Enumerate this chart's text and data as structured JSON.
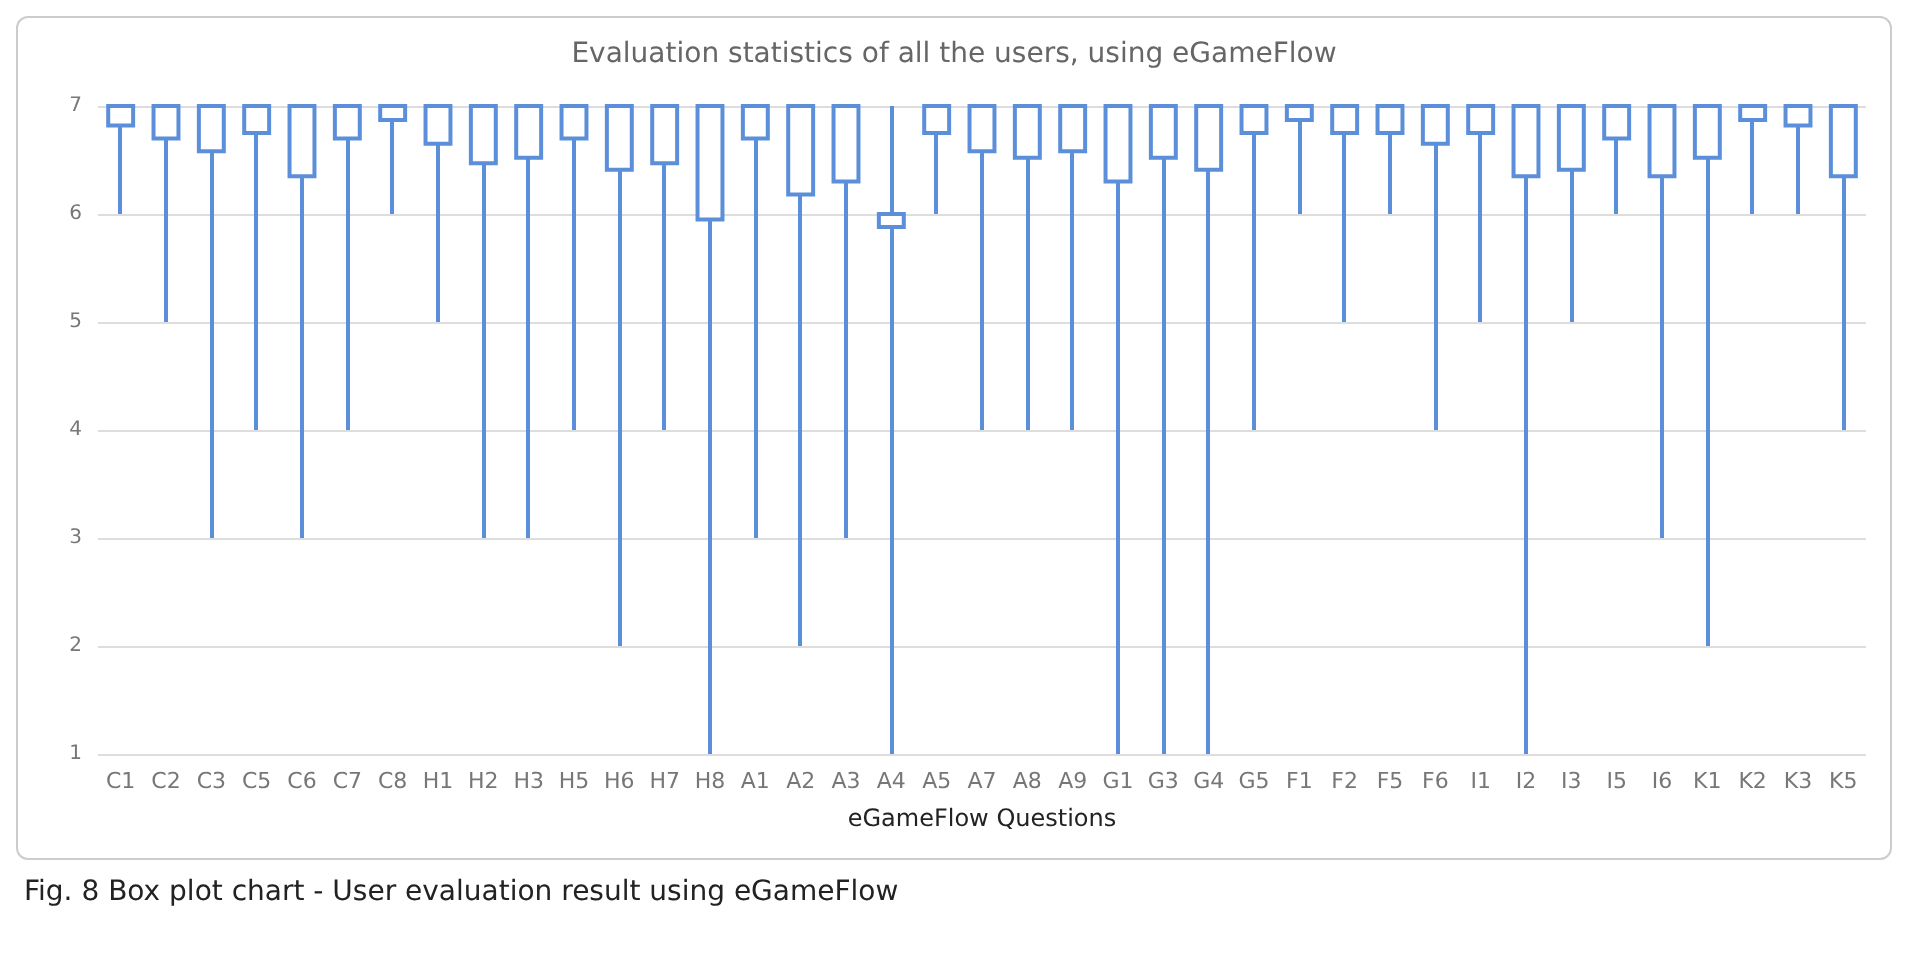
{
  "chart_data": {
    "type": "box",
    "title": "Evaluation statistics of all the users, using eGameFlow",
    "xlabel": "eGameFlow Questions",
    "categories": [
      "C1",
      "C2",
      "C3",
      "C5",
      "C6",
      "C7",
      "C8",
      "H1",
      "H2",
      "H3",
      "H5",
      "H6",
      "H7",
      "H8",
      "A1",
      "A2",
      "A3",
      "A4",
      "A5",
      "A7",
      "A8",
      "A9",
      "G1",
      "G3",
      "G4",
      "G5",
      "F1",
      "F2",
      "F5",
      "F6",
      "I1",
      "I2",
      "I3",
      "I5",
      "I6",
      "K1",
      "K2",
      "K3",
      "K5"
    ],
    "color": "#5b8fd9",
    "boxes": [
      {
        "low": 6,
        "q1": 6.82,
        "median": 7,
        "q3": 7,
        "high": 7
      },
      {
        "low": 5,
        "q1": 6.7,
        "median": 7,
        "q3": 7,
        "high": 7
      },
      {
        "low": 3,
        "q1": 6.58,
        "median": 7,
        "q3": 7,
        "high": 7
      },
      {
        "low": 4,
        "q1": 6.75,
        "median": 7,
        "q3": 7,
        "high": 7
      },
      {
        "low": 3,
        "q1": 6.35,
        "median": 7,
        "q3": 7,
        "high": 7
      },
      {
        "low": 4,
        "q1": 6.7,
        "median": 7,
        "q3": 7,
        "high": 7
      },
      {
        "low": 6,
        "q1": 6.87,
        "median": 7,
        "q3": 7,
        "high": 7
      },
      {
        "low": 5,
        "q1": 6.65,
        "median": 7,
        "q3": 7,
        "high": 7
      },
      {
        "low": 3,
        "q1": 6.47,
        "median": 7,
        "q3": 7,
        "high": 7
      },
      {
        "low": 3,
        "q1": 6.52,
        "median": 7,
        "q3": 7,
        "high": 7
      },
      {
        "low": 4,
        "q1": 6.7,
        "median": 7,
        "q3": 7,
        "high": 7
      },
      {
        "low": 2,
        "q1": 6.41,
        "median": 7,
        "q3": 7,
        "high": 7
      },
      {
        "low": 4,
        "q1": 6.47,
        "median": 7,
        "q3": 7,
        "high": 7
      },
      {
        "low": 1,
        "q1": 5.95,
        "median": 7,
        "q3": 7,
        "high": 7
      },
      {
        "low": 3,
        "q1": 6.7,
        "median": 7,
        "q3": 7,
        "high": 7
      },
      {
        "low": 2,
        "q1": 6.18,
        "median": 7,
        "q3": 7,
        "high": 7
      },
      {
        "low": 3,
        "q1": 6.3,
        "median": 7,
        "q3": 7,
        "high": 7
      },
      {
        "low": 1,
        "q1": 5.88,
        "median": 6,
        "q3": 6,
        "high": 7
      },
      {
        "low": 6,
        "q1": 6.75,
        "median": 7,
        "q3": 7,
        "high": 7
      },
      {
        "low": 4,
        "q1": 6.58,
        "median": 7,
        "q3": 7,
        "high": 7
      },
      {
        "low": 4,
        "q1": 6.52,
        "median": 7,
        "q3": 7,
        "high": 7
      },
      {
        "low": 4,
        "q1": 6.58,
        "median": 7,
        "q3": 7,
        "high": 7
      },
      {
        "low": 1,
        "q1": 6.3,
        "median": 7,
        "q3": 7,
        "high": 7
      },
      {
        "low": 1,
        "q1": 6.52,
        "median": 7,
        "q3": 7,
        "high": 7
      },
      {
        "low": 1,
        "q1": 6.41,
        "median": 7,
        "q3": 7,
        "high": 7
      },
      {
        "low": 4,
        "q1": 6.75,
        "median": 7,
        "q3": 7,
        "high": 7
      },
      {
        "low": 6,
        "q1": 6.87,
        "median": 7,
        "q3": 7,
        "high": 7
      },
      {
        "low": 5,
        "q1": 6.75,
        "median": 7,
        "q3": 7,
        "high": 7
      },
      {
        "low": 6,
        "q1": 6.75,
        "median": 7,
        "q3": 7,
        "high": 7
      },
      {
        "low": 4,
        "q1": 6.65,
        "median": 7,
        "q3": 7,
        "high": 7
      },
      {
        "low": 5,
        "q1": 6.75,
        "median": 7,
        "q3": 7,
        "high": 7
      },
      {
        "low": 1,
        "q1": 6.35,
        "median": 7,
        "q3": 7,
        "high": 7
      },
      {
        "low": 5,
        "q1": 6.41,
        "median": 7,
        "q3": 7,
        "high": 7
      },
      {
        "low": 6,
        "q1": 6.7,
        "median": 7,
        "q3": 7,
        "high": 7
      },
      {
        "low": 3,
        "q1": 6.35,
        "median": 7,
        "q3": 7,
        "high": 7
      },
      {
        "low": 2,
        "q1": 6.52,
        "median": 7,
        "q3": 7,
        "high": 7
      },
      {
        "low": 6,
        "q1": 6.87,
        "median": 7,
        "q3": 7,
        "high": 7
      },
      {
        "low": 6,
        "q1": 6.82,
        "median": 7,
        "q3": 7,
        "high": 7
      },
      {
        "low": 4,
        "q1": 6.35,
        "median": 7,
        "q3": 7,
        "high": 7
      }
    ],
    "ylim": [
      1,
      7
    ],
    "yticks": [
      1,
      2,
      3,
      4,
      5,
      6,
      7
    ],
    "grid": "y",
    "annotations": [
      "Fig. 8 Box plot chart - User evaluation result using eGameFlow"
    ]
  }
}
